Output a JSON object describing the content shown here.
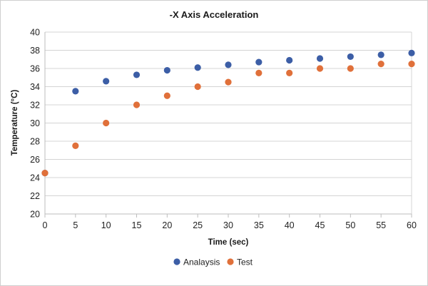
{
  "chart_data": {
    "type": "scatter",
    "title": "-X Axis Acceleration",
    "xlabel": "Time (sec)",
    "ylabel": "Temperature (°C)",
    "xlim": [
      0,
      60
    ],
    "ylim": [
      20,
      40
    ],
    "x_ticks": [
      0,
      5,
      10,
      15,
      20,
      25,
      30,
      35,
      40,
      45,
      50,
      55,
      60
    ],
    "y_ticks": [
      20,
      22,
      24,
      26,
      28,
      30,
      32,
      34,
      36,
      38,
      40
    ],
    "grid": "horizontal",
    "legend_position": "bottom",
    "series": [
      {
        "name": "Analaysis",
        "color": "#3c5ea6",
        "x": [
          0,
          5,
          10,
          15,
          20,
          25,
          30,
          35,
          40,
          45,
          50,
          55,
          60
        ],
        "y": [
          24.5,
          33.5,
          34.6,
          35.3,
          35.8,
          36.1,
          36.4,
          36.7,
          36.9,
          37.1,
          37.3,
          37.5,
          37.7
        ]
      },
      {
        "name": "Test",
        "color": "#e0703a",
        "x": [
          0,
          5,
          10,
          15,
          20,
          25,
          30,
          35,
          40,
          45,
          50,
          55,
          60
        ],
        "y": [
          24.5,
          27.5,
          30.0,
          32.0,
          33.0,
          34.0,
          34.5,
          35.5,
          35.5,
          36.0,
          36.0,
          36.5,
          36.5
        ]
      }
    ]
  }
}
